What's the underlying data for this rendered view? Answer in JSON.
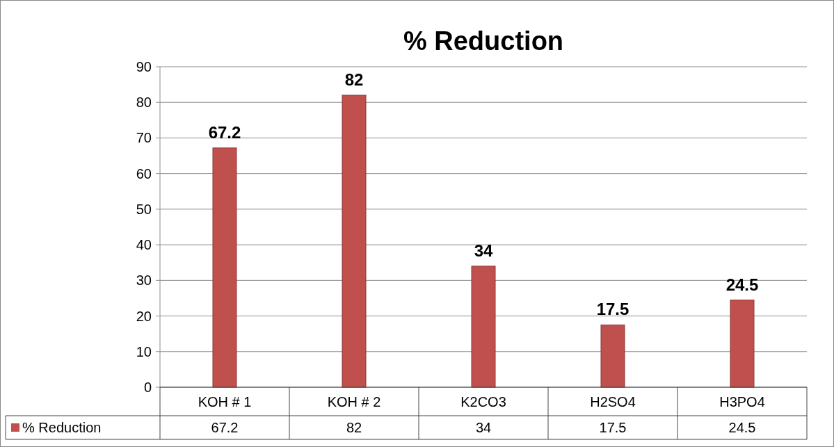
{
  "chart_data": {
    "type": "bar",
    "title": "% Reduction",
    "categories": [
      "KOH # 1",
      "KOH # 2",
      "K2CO3",
      "H2SO4",
      "H3PO4"
    ],
    "series": [
      {
        "name": "% Reduction",
        "color": "#c0504d",
        "values": [
          67.2,
          82,
          34,
          17.5,
          24.5
        ],
        "value_labels": [
          "67.2",
          "82",
          "34",
          "17.5",
          "24.5"
        ]
      }
    ],
    "ylim": [
      0,
      90
    ],
    "yticks": [
      0,
      10,
      20,
      30,
      40,
      50,
      60,
      70,
      80,
      90
    ],
    "annotations": [
      "67.2",
      "82",
      "34",
      "17.5",
      "24.5"
    ],
    "grid": "y",
    "data_labels": true,
    "legend": "bottom"
  }
}
